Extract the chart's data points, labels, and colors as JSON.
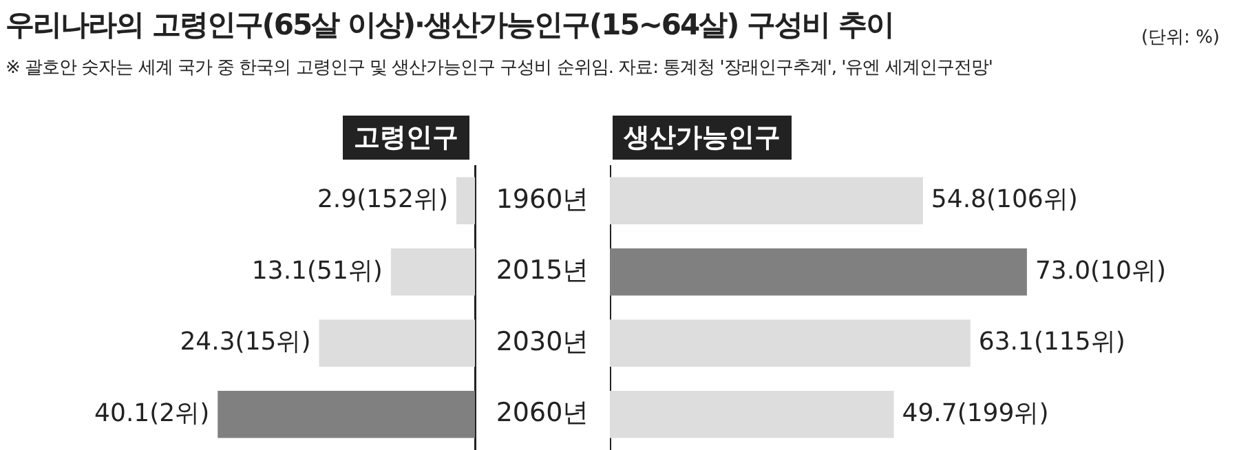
{
  "chart_data": [
    {
      "type": "bar",
      "title": "우리나라의 고령인구(65살 이상)·생산가능인구(15~64살) 구성비 추이",
      "annotations": [
        "(단위: %)",
        "※ 괄호안 숫자는 세계 국가 중 한국의 고령인구 및 생산가능인구 구성비 순위임. 자료: 통계청 '장래인구추계', '유엔 세계인구전망'"
      ],
      "orientation": "horizontal",
      "categories": [
        "1960년",
        "2015년",
        "2030년",
        "2060년"
      ],
      "tick_labels": "y",
      "series": [
        {
          "name": "고령인구",
          "colors": [
            "#dddddd",
            "#dddddd",
            "#dddddd",
            "#808080"
          ],
          "values": [
            2.9,
            13.1,
            24.3,
            40.1
          ],
          "value_labels": [
            "2.9(152위)",
            "13.1(51위)",
            "24.3(15위)",
            "40.1(2위)"
          ]
        }
      ]
    },
    {
      "type": "bar",
      "orientation": "horizontal",
      "categories": [
        null,
        null,
        null,
        null
      ],
      "tick_labels": false,
      "series": [
        {
          "name": "생산가능인구",
          "colors": [
            "#dddddd",
            "#808080",
            "#dddddd",
            "#dddddd"
          ],
          "values": [
            54.8,
            73.0,
            63.1,
            49.7
          ],
          "value_labels": [
            "54.8(106위)",
            "73.0(10위)",
            "63.1(115위)",
            "49.7(199위)"
          ]
        }
      ]
    }
  ]
}
